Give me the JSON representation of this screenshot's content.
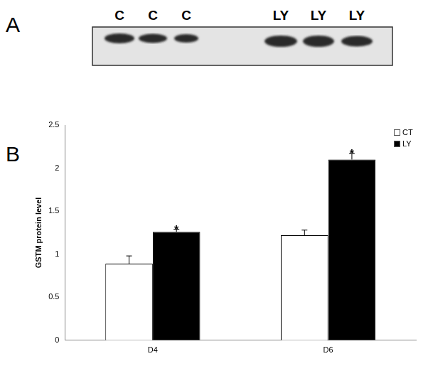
{
  "panel_labels": [
    "A",
    "B"
  ],
  "blot": {
    "lanes": [
      "C",
      "C",
      "C",
      "LY",
      "LY",
      "LY"
    ]
  },
  "chart_data": {
    "type": "bar",
    "ylabel": "GSTM protein level",
    "categories": [
      "D4",
      "D6"
    ],
    "series": [
      {
        "name": "CT",
        "color": "#ffffff",
        "values": [
          0.89,
          1.22
        ],
        "errors": [
          0.09,
          0.06
        ]
      },
      {
        "name": "LY",
        "color": "#000000",
        "values": [
          1.26,
          2.1
        ],
        "errors": [
          0.03,
          0.07
        ]
      }
    ],
    "ylim": [
      0,
      2.5
    ],
    "yticks": [
      0,
      0.5,
      1,
      1.5,
      2,
      2.5
    ],
    "grid": false,
    "legend": "upper right",
    "annotations": [
      {
        "text": "*",
        "series": "LY",
        "category": "D4"
      },
      {
        "text": "*",
        "series": "LY",
        "category": "D6"
      }
    ]
  }
}
